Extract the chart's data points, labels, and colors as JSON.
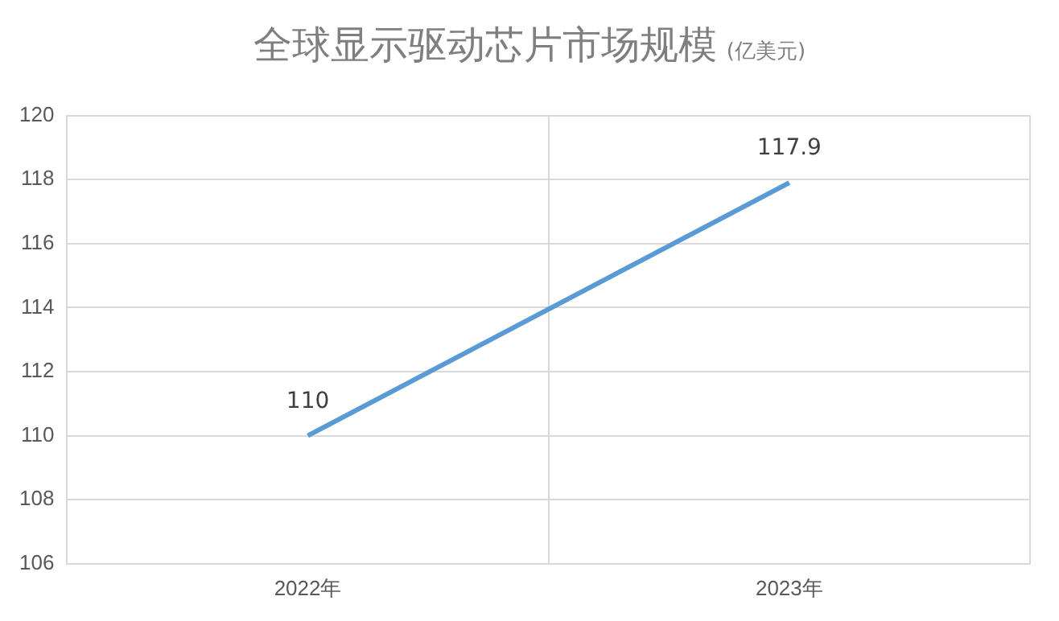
{
  "chart_data": {
    "type": "line",
    "title": "全球显示驱动芯片市场规模",
    "subtitle": "(亿美元)",
    "categories": [
      "2022年",
      "2023年"
    ],
    "series": [
      {
        "color": "#5b9bd5",
        "values": [
          110,
          117.9
        ]
      }
    ],
    "ylim": [
      106,
      120
    ],
    "yticks": [
      106,
      108,
      110,
      112,
      114,
      116,
      118,
      120
    ],
    "grid": true,
    "legend": false,
    "marker": "none",
    "line_style": "solid",
    "data_labels": true
  }
}
